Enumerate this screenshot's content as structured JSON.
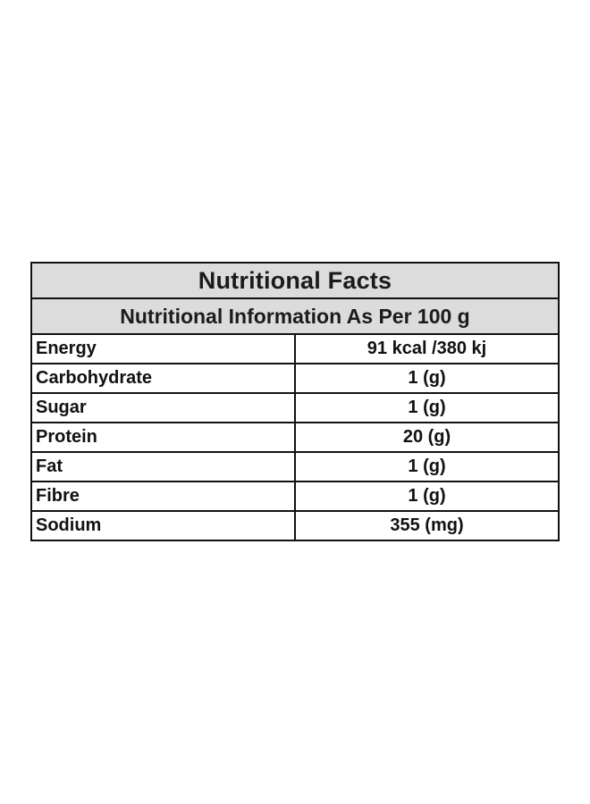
{
  "table": {
    "title": "Nutritional Facts",
    "subtitle": "Nutritional Information As Per 100 g",
    "rows": [
      {
        "name": "Energy",
        "value": "91 kcal /380 kj"
      },
      {
        "name": "Carbohydrate",
        "value": "1 (g)"
      },
      {
        "name": "Sugar",
        "value": "1 (g)"
      },
      {
        "name": "Protein",
        "value": "20 (g)"
      },
      {
        "name": "Fat",
        "value": "1 (g)"
      },
      {
        "name": "Fibre",
        "value": "1 (g)"
      },
      {
        "name": "Sodium",
        "value": "355 (mg)"
      }
    ]
  },
  "colors": {
    "header_background": "#dcdcdc",
    "border": "#111111",
    "page_background": "#ffffff"
  }
}
